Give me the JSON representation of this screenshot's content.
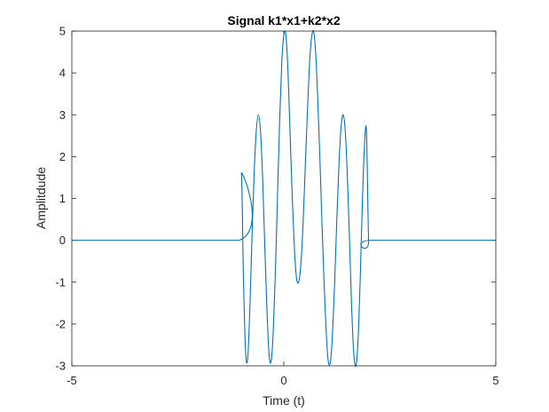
{
  "chart_data": {
    "type": "line",
    "title": "Signal k1*x1+k2*x2",
    "xlabel": "Time (t)",
    "ylabel": "Amplitdude",
    "xlim": [
      -5,
      5
    ],
    "ylim": [
      -3,
      5
    ],
    "xticks": [
      -5,
      0,
      5
    ],
    "xtick_labels": [
      "-5",
      "0",
      "5"
    ],
    "yticks": [
      -3,
      -2,
      -1,
      0,
      1,
      2,
      3,
      4,
      5
    ],
    "ytick_labels": [
      "-3",
      "-2",
      "-1",
      "0",
      "1",
      "2",
      "3",
      "4",
      "5"
    ],
    "grid": false,
    "line_color": "#0072BD",
    "series": [
      {
        "x": [
          -5,
          -1.05,
          -1.0,
          -0.95,
          -0.9,
          -0.85,
          -0.8,
          -0.75,
          -0.7,
          -0.65,
          -0.6,
          -0.55,
          -0.5,
          -0.45,
          -0.4,
          -0.35,
          -0.3,
          -0.25,
          -0.2,
          -0.15,
          -0.1,
          -0.05,
          0.0,
          0.05,
          0.1,
          0.15,
          0.2,
          0.25,
          0.3,
          0.35,
          0.4,
          0.45,
          0.5,
          0.55,
          0.6,
          0.65,
          0.7,
          0.75,
          0.8,
          0.85,
          0.9,
          0.95,
          1.0,
          1.05,
          1.1,
          1.15,
          1.2,
          1.25,
          1.3,
          1.35,
          1.4,
          1.45,
          1.5,
          1.55,
          1.6,
          1.65,
          1.7,
          1.75,
          1.8,
          1.85,
          1.9,
          1.95,
          2.0,
          2.05,
          5
        ],
        "y": [
          0,
          0,
          1.6,
          -1.0,
          -2.7,
          -2.8,
          -1.6,
          0.1,
          1.6,
          2.6,
          3.0,
          2.6,
          1.5,
          -0.1,
          -1.6,
          -2.7,
          -2.9,
          -2.2,
          -0.8,
          1.0,
          2.8,
          4.2,
          4.9,
          4.9,
          4.0,
          2.5,
          1.0,
          -0.2,
          -0.9,
          -1.0,
          -0.6,
          0.3,
          1.6,
          2.9,
          4.1,
          4.8,
          5.0,
          4.5,
          3.4,
          2.0,
          0.4,
          -1.0,
          -2.2,
          -2.9,
          -2.9,
          -2.2,
          -1.0,
          0.5,
          1.8,
          2.7,
          3.0,
          2.6,
          1.5,
          0.0,
          -1.6,
          -2.7,
          -3.0,
          -2.4,
          -1.0,
          0.8,
          2.2,
          2.6,
          0.0,
          0,
          0
        ]
      }
    ]
  }
}
